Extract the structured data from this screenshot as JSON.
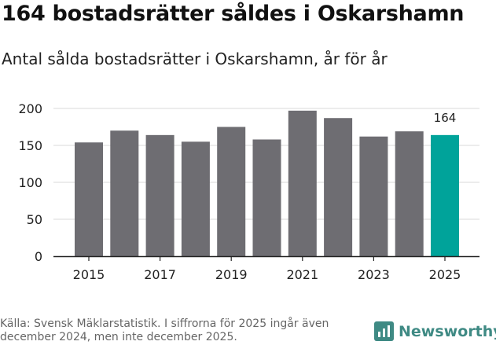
{
  "title": "164 bostadsrätter såldes i Oskarshamn",
  "subtitle": "Antal sålda bostadsrätter i Oskarshamn, år för år",
  "source": "Källa: Svensk Mäklarstatistik. I siffrorna för 2025 ingår även december 2024, men inte december 2025.",
  "brand": "Newsworthy",
  "colors": {
    "bar": "#6e6d72",
    "highlight": "#00a39a",
    "grid": "#d9d9d9",
    "axis": "#222222",
    "logo": "#3f8a84"
  },
  "chart_data": {
    "type": "bar",
    "categories": [
      "2015",
      "2016",
      "2017",
      "2018",
      "2019",
      "2020",
      "2021",
      "2022",
      "2023",
      "2024",
      "2025"
    ],
    "values": [
      154,
      170,
      164,
      155,
      175,
      158,
      197,
      187,
      162,
      169,
      164
    ],
    "xtick_labels": [
      "2015",
      "2017",
      "2019",
      "2021",
      "2023",
      "2025"
    ],
    "yticks": [
      0,
      50,
      100,
      150,
      200
    ],
    "ylim": [
      0,
      200
    ],
    "highlight_index": 10,
    "data_labels": [
      {
        "index": 10,
        "text": "164"
      }
    ],
    "title": "164 bostadsrätter såldes i Oskarshamn",
    "xlabel": "",
    "ylabel": ""
  }
}
